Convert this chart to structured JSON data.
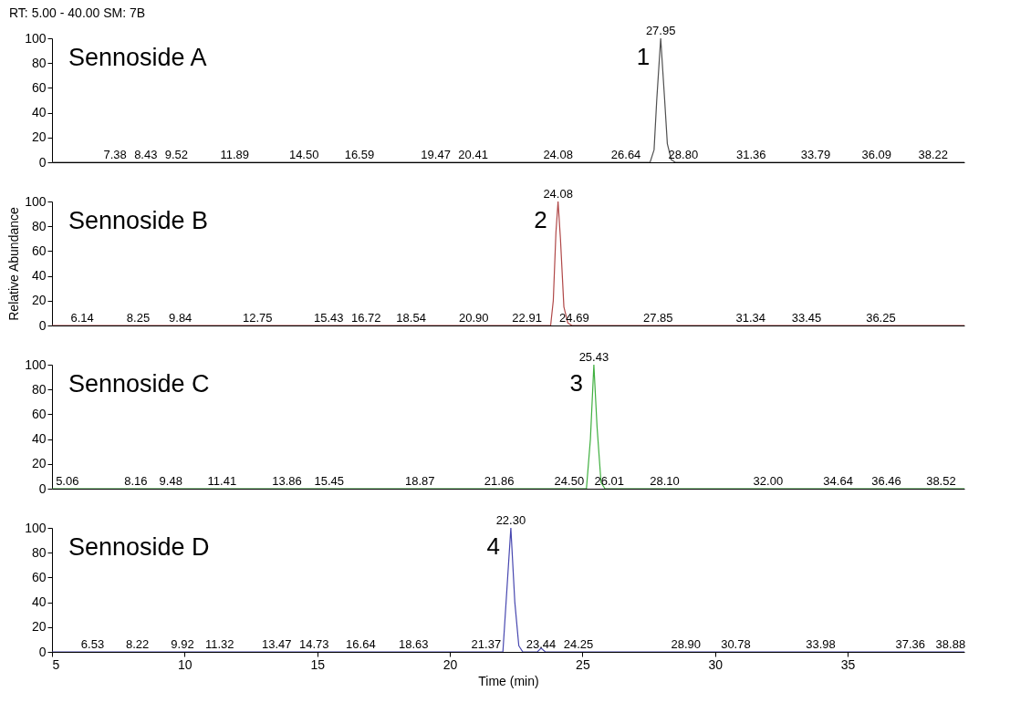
{
  "chart_data": [
    {
      "type": "line",
      "title": "Sennoside A",
      "xlim": [
        5,
        39.4
      ],
      "ylim": [
        0,
        100
      ],
      "yticks": [
        0,
        20,
        40,
        60,
        80,
        100
      ],
      "tick_labels": "y",
      "grid": false,
      "series": [
        {
          "color": "#505050",
          "x": [
            5,
            27.55,
            27.7,
            27.8,
            27.95,
            28.1,
            28.2,
            28.35,
            28.5,
            39.4
          ],
          "values": [
            0,
            0,
            10,
            50,
            100,
            50,
            15,
            2,
            0,
            0
          ]
        }
      ],
      "subtitle": "RT: 5.00 - 40.00   SM: 7B",
      "annotations": [
        {
          "text": "27.95",
          "x": 27.95,
          "y": 100
        },
        "1",
        {
          "text": "7.38",
          "x": 7.38,
          "y": 0
        },
        {
          "text": "8.43",
          "x": 8.43,
          "y": 0
        },
        {
          "text": "9.52",
          "x": 9.52,
          "y": 0
        },
        {
          "text": "11.89",
          "x": 11.89,
          "y": 0
        },
        {
          "text": "14.50",
          "x": 14.5,
          "y": 0
        },
        {
          "text": "16.59",
          "x": 16.59,
          "y": 0
        },
        {
          "text": "19.47",
          "x": 19.47,
          "y": 0
        },
        {
          "text": "20.41",
          "x": 20.41,
          "y": 0
        },
        {
          "text": "24.08",
          "x": 24.08,
          "y": 0
        },
        {
          "text": "26.64",
          "x": 26.64,
          "y": 0
        },
        {
          "text": "28.80",
          "x": 28.8,
          "y": 0
        },
        {
          "text": "31.36",
          "x": 31.36,
          "y": 0
        },
        {
          "text": "33.79",
          "x": 33.79,
          "y": 0
        },
        {
          "text": "36.09",
          "x": 36.09,
          "y": 0
        },
        {
          "text": "38.22",
          "x": 38.22,
          "y": 0
        }
      ]
    },
    {
      "type": "line",
      "title": "Sennoside B",
      "ylabel": "Relative Abundance",
      "xlim": [
        5,
        39.4
      ],
      "ylim": [
        0,
        100
      ],
      "yticks": [
        0,
        20,
        40,
        60,
        80,
        100
      ],
      "tick_labels": "y",
      "grid": false,
      "series": [
        {
          "color": "#b04848",
          "x": [
            5,
            23.8,
            23.9,
            24.0,
            24.08,
            24.17,
            24.3,
            24.45,
            24.6,
            39.4
          ],
          "values": [
            0,
            0,
            20,
            75,
            100,
            70,
            15,
            2,
            0,
            0
          ]
        }
      ],
      "annotations": [
        {
          "text": "24.08",
          "x": 24.08,
          "y": 100
        },
        "2",
        {
          "text": "6.14",
          "x": 6.14,
          "y": 0
        },
        {
          "text": "8.25",
          "x": 8.25,
          "y": 0
        },
        {
          "text": "9.84",
          "x": 9.84,
          "y": 0
        },
        {
          "text": "12.75",
          "x": 12.75,
          "y": 0
        },
        {
          "text": "15.43",
          "x": 15.43,
          "y": 0
        },
        {
          "text": "16.72",
          "x": 16.72,
          "y": 0
        },
        {
          "text": "18.54",
          "x": 18.54,
          "y": 0
        },
        {
          "text": "20.90",
          "x": 20.9,
          "y": 0
        },
        {
          "text": "22.91",
          "x": 22.91,
          "y": 0
        },
        {
          "text": "24.69",
          "x": 24.69,
          "y": 0
        },
        {
          "text": "27.85",
          "x": 27.85,
          "y": 0
        },
        {
          "text": "31.34",
          "x": 31.34,
          "y": 0
        },
        {
          "text": "33.45",
          "x": 33.45,
          "y": 0
        },
        {
          "text": "36.25",
          "x": 36.25,
          "y": 0
        }
      ]
    },
    {
      "type": "line",
      "title": "Sennoside C",
      "xlim": [
        5,
        39.4
      ],
      "ylim": [
        0,
        100
      ],
      "yticks": [
        0,
        20,
        40,
        60,
        80,
        100
      ],
      "tick_labels": "y",
      "grid": false,
      "series": [
        {
          "color": "#40b040",
          "x": [
            5,
            25.15,
            25.3,
            25.43,
            25.55,
            25.7,
            25.85,
            39.4
          ],
          "values": [
            0,
            0,
            40,
            100,
            50,
            5,
            0,
            0
          ]
        }
      ],
      "annotations": [
        {
          "text": "25.43",
          "x": 25.43,
          "y": 100
        },
        "3",
        {
          "text": "5.06",
          "x": 5.06,
          "y": 0
        },
        {
          "text": "8.16",
          "x": 8.16,
          "y": 0
        },
        {
          "text": "9.48",
          "x": 9.48,
          "y": 0
        },
        {
          "text": "11.41",
          "x": 11.41,
          "y": 0
        },
        {
          "text": "13.86",
          "x": 13.86,
          "y": 0
        },
        {
          "text": "15.45",
          "x": 15.45,
          "y": 0
        },
        {
          "text": "18.87",
          "x": 18.87,
          "y": 0
        },
        {
          "text": "21.86",
          "x": 21.86,
          "y": 0
        },
        {
          "text": "24.50",
          "x": 24.5,
          "y": 0
        },
        {
          "text": "26.01",
          "x": 26.01,
          "y": 0
        },
        {
          "text": "28.10",
          "x": 28.1,
          "y": 0
        },
        {
          "text": "32.00",
          "x": 32.0,
          "y": 0
        },
        {
          "text": "34.64",
          "x": 34.64,
          "y": 0
        },
        {
          "text": "36.46",
          "x": 36.46,
          "y": 0
        },
        {
          "text": "38.52",
          "x": 38.52,
          "y": 0
        }
      ]
    },
    {
      "type": "line",
      "title": "Sennoside D",
      "xlabel": "Time (min)",
      "xlim": [
        5,
        39.4
      ],
      "xticks": [
        5,
        10,
        15,
        20,
        25,
        30,
        35
      ],
      "ylim": [
        0,
        100
      ],
      "yticks": [
        0,
        20,
        40,
        60,
        80,
        100
      ],
      "grid": false,
      "series": [
        {
          "color": "#4848b0",
          "x": [
            5,
            22.0,
            22.15,
            22.3,
            22.45,
            22.6,
            22.75,
            23.3,
            23.44,
            23.6,
            39.4
          ],
          "values": [
            0,
            0,
            50,
            100,
            40,
            5,
            0,
            0,
            3,
            0,
            0
          ]
        }
      ],
      "annotations": [
        {
          "text": "22.30",
          "x": 22.3,
          "y": 100
        },
        "4",
        {
          "text": "6.53",
          "x": 6.53,
          "y": 0
        },
        {
          "text": "8.22",
          "x": 8.22,
          "y": 0
        },
        {
          "text": "9.92",
          "x": 9.92,
          "y": 0
        },
        {
          "text": "11.32",
          "x": 11.32,
          "y": 0
        },
        {
          "text": "13.47",
          "x": 13.47,
          "y": 0
        },
        {
          "text": "14.73",
          "x": 14.73,
          "y": 0
        },
        {
          "text": "16.64",
          "x": 16.64,
          "y": 0
        },
        {
          "text": "18.63",
          "x": 18.63,
          "y": 0
        },
        {
          "text": "21.37",
          "x": 21.37,
          "y": 0
        },
        {
          "text": "23.44",
          "x": 23.44,
          "y": 0
        },
        {
          "text": "24.25",
          "x": 24.25,
          "y": 0
        },
        {
          "text": "28.90",
          "x": 28.9,
          "y": 0
        },
        {
          "text": "30.78",
          "x": 30.78,
          "y": 0
        },
        {
          "text": "33.98",
          "x": 33.98,
          "y": 0
        },
        {
          "text": "37.36",
          "x": 37.36,
          "y": 0
        },
        {
          "text": "38.88",
          "x": 38.88,
          "y": 0
        }
      ]
    }
  ]
}
